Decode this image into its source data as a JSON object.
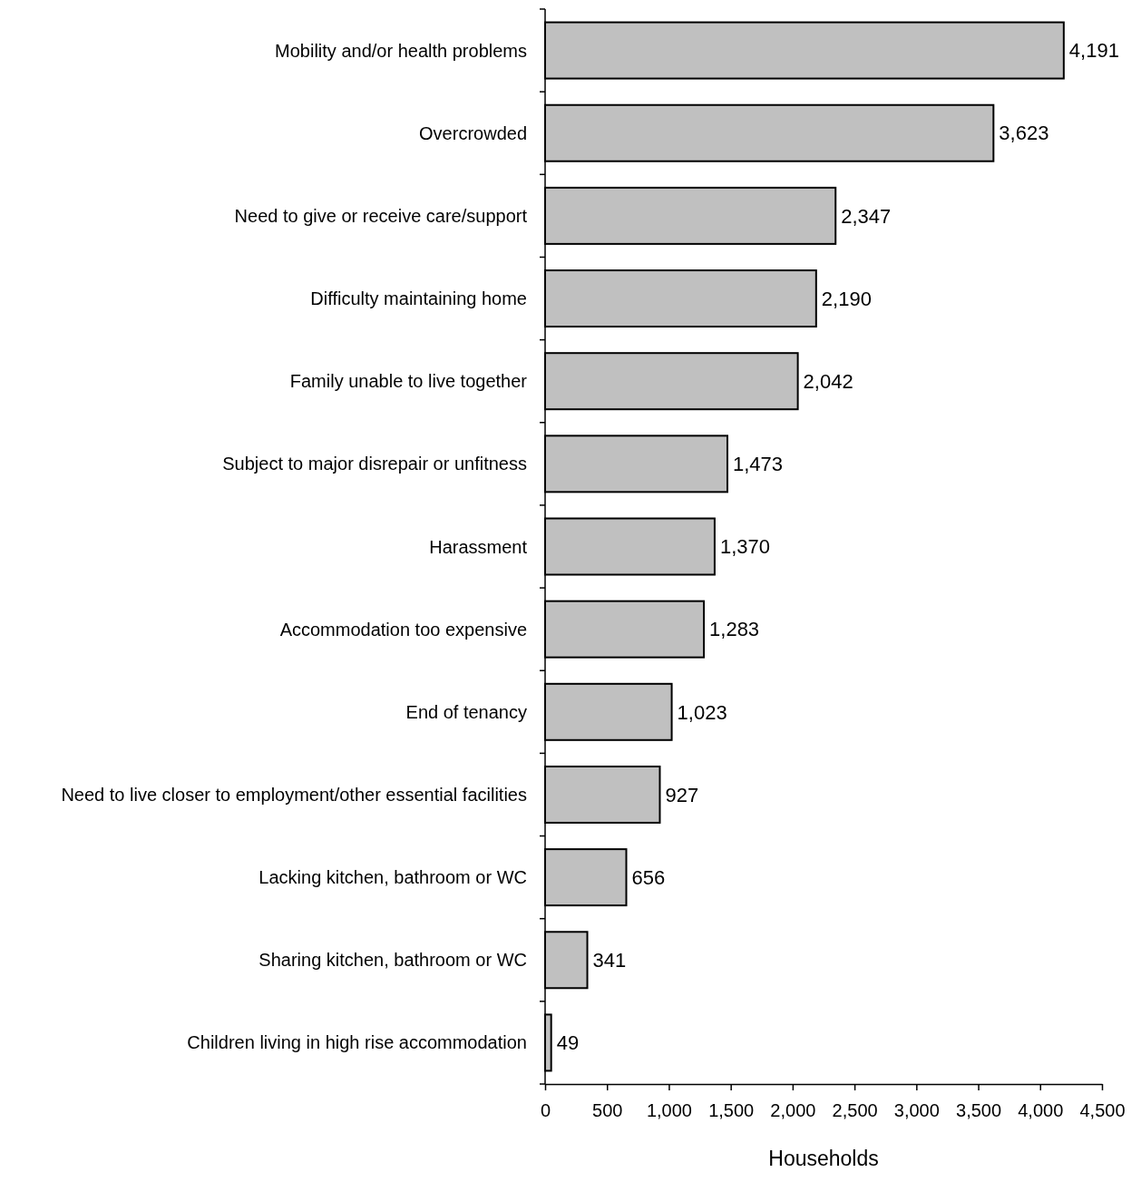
{
  "chart_data": {
    "type": "bar",
    "orientation": "horizontal",
    "xlabel": "Households",
    "categories": [
      "Mobility and/or health problems",
      "Overcrowded",
      "Need to give or receive care/support",
      "Difficulty maintaining home",
      "Family unable to live together",
      "Subject to major disrepair or unfitness",
      "Harassment",
      "Accommodation too expensive",
      "End of tenancy",
      "Need to live closer to employment/other essential facilities",
      "Lacking kitchen, bathroom or WC",
      "Sharing kitchen, bathroom or WC",
      "Children living in high rise accommodation"
    ],
    "values": [
      4191,
      3623,
      2347,
      2190,
      2042,
      1473,
      1370,
      1283,
      1023,
      927,
      656,
      341,
      49
    ],
    "value_labels": [
      "4,191",
      "3,623",
      "2,347",
      "2,190",
      "2,042",
      "1,473",
      "1,370",
      "1,283",
      "1,023",
      "927",
      "656",
      "341",
      "49"
    ],
    "color": "#c0c0c0",
    "grid": false,
    "xlim": [
      0,
      4500
    ],
    "xticks": [
      0,
      500,
      {
        "value": 1000,
        "label": "1,000"
      },
      {
        "value": 1500,
        "label": "1,500"
      },
      {
        "value": 2000,
        "label": "2,000"
      },
      {
        "value": 2500,
        "label": "2,500"
      },
      {
        "value": 3000,
        "label": "3,000"
      },
      {
        "value": 3500,
        "label": "3,500"
      },
      {
        "value": 4000,
        "label": "4,000"
      },
      {
        "value": 4500,
        "label": "4,500"
      }
    ]
  }
}
